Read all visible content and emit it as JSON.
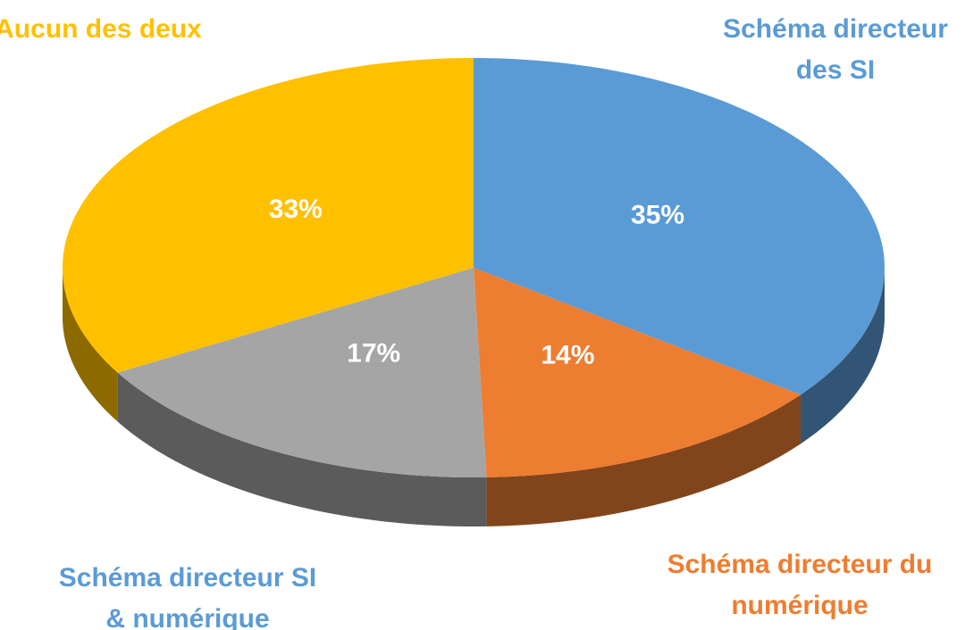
{
  "chart_data": {
    "type": "pie",
    "categories": [
      "Schéma directeur des SI",
      "Schéma directeur du numérique",
      "Schéma directeur SI & numérique",
      "Aucun des deux"
    ],
    "values": [
      35,
      14,
      17,
      33
    ],
    "value_labels": [
      "35%",
      "14%",
      "17%",
      "33%"
    ],
    "colors": [
      "#5b9bd5",
      "#ed7d31",
      "#a5a5a5",
      "#ffc000"
    ],
    "label_colors": [
      "#5b9bd5",
      "#ed7d31",
      "#5b9bd5",
      "#ffc000"
    ]
  }
}
